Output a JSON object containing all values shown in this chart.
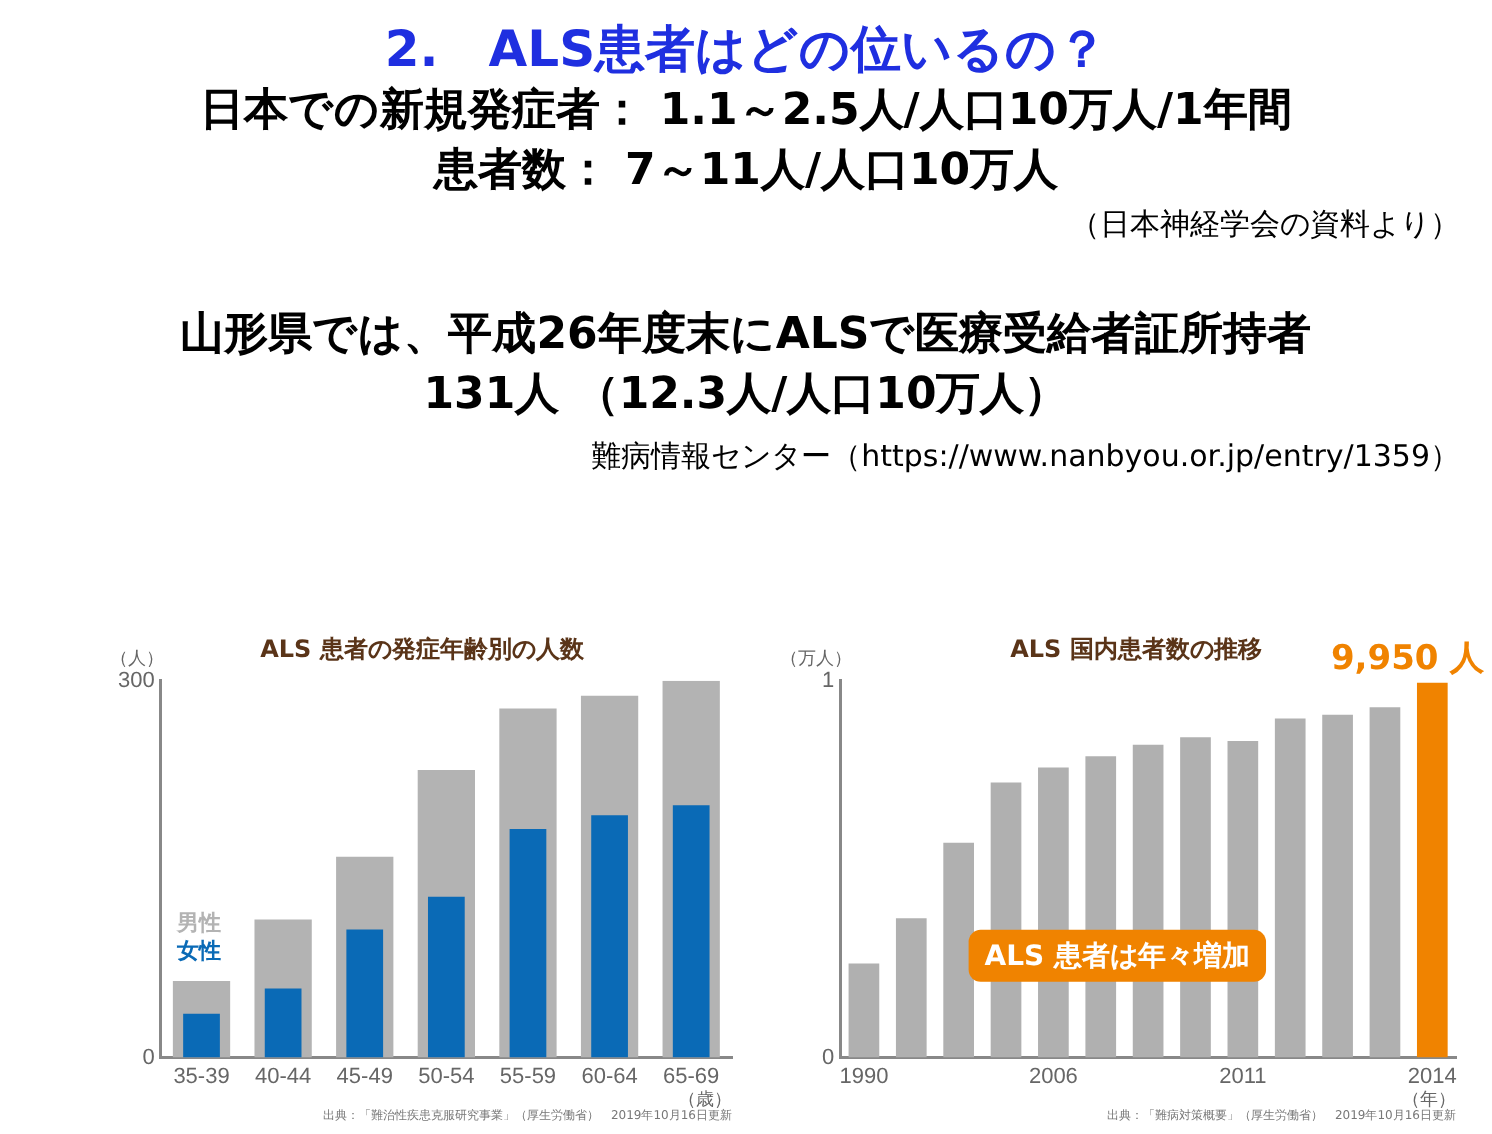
{
  "chart_data": [
    {
      "type": "other",
      "title": "2.　ALS患者はどの位いるの？",
      "annotations": [
        "日本での新規発症者：  1.1～2.5人/人口10万人/1年間",
        "患者数：  7～11人/人口10万人",
        "（日本神経学会の資料より）",
        "山形県では、平成26年度末にALSで医療受給者証所持者",
        "131人 （12.3人/人口10万人）",
        "難病情報センター（https://www.nanbyou.or.jp/entry/1359）"
      ]
    },
    {
      "type": "bar",
      "title": "ALS 患者の発症年齢別の人数",
      "ylabel": "（人）",
      "xlabel": "（歳）",
      "categories": [
        "35-39",
        "40-44",
        "45-49",
        "50-54",
        "55-59",
        "60-64",
        "65-69"
      ],
      "series": [
        {
          "name": "男性",
          "color": "#b3b3b3",
          "values": [
            61,
            110,
            160,
            229,
            278,
            288,
            300
          ]
        },
        {
          "name": "女性",
          "color": "#0a6ab6",
          "values": [
            35,
            55,
            102,
            128,
            182,
            193,
            201
          ]
        }
      ],
      "ylim": [
        0,
        300
      ],
      "yticks": [
        0,
        300
      ],
      "grid": false,
      "legend": false,
      "annotations": [
        "出典：「難治性疾患克服研究事業」（厚生労働省）　2019年10月16日更新"
      ]
    },
    {
      "type": "bar",
      "title": "ALS 国内患者数の推移",
      "ylabel": "（万人）",
      "xlabel": "（年）",
      "categories": [
        "1990",
        null,
        null,
        null,
        "2006",
        null,
        null,
        null,
        "2011",
        null,
        null,
        null,
        "2014"
      ],
      "values": [
        0.25,
        0.37,
        0.57,
        0.73,
        0.77,
        0.8,
        0.83,
        0.85,
        0.84,
        0.9,
        0.91,
        0.93,
        0.995
      ],
      "colors": [
        "#b0b0b0",
        "#b0b0b0",
        "#b0b0b0",
        "#b0b0b0",
        "#b0b0b0",
        "#b0b0b0",
        "#b0b0b0",
        "#b0b0b0",
        "#b0b0b0",
        "#b0b0b0",
        "#b0b0b0",
        "#b0b0b0",
        "#f08300"
      ],
      "ylim": [
        0,
        1
      ],
      "yticks": [
        0,
        1
      ],
      "grid": false,
      "legend": false,
      "annotations": [
        {
          "text": "9,950 人",
          "x": "2014",
          "y": 0.995
        },
        "ALS 患者は年々増加",
        "出典：「難病対策概要」（厚生労働省）　2019年10月16日更新"
      ]
    }
  ]
}
